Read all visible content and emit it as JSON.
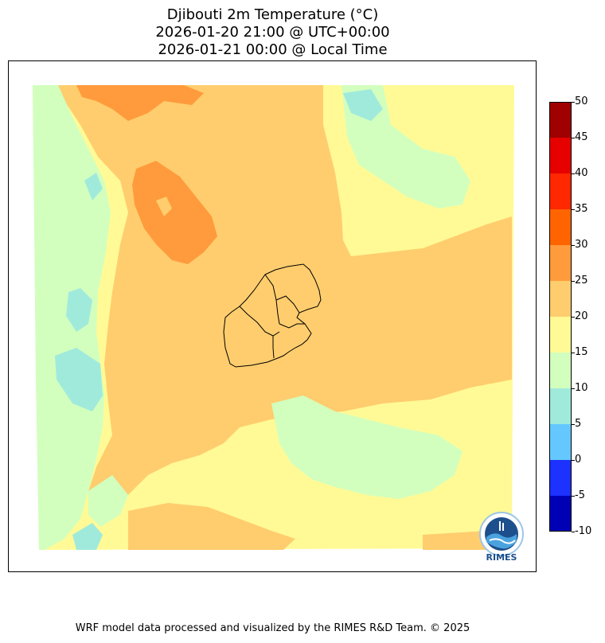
{
  "title": {
    "line1": "Djibouti 2m Temperature (°C)",
    "line2": "2026-01-20 21:00 @ UTC+00:00",
    "line3": "2026-01-21 00:00 @ Local Time"
  },
  "colorbar": {
    "levels": [
      -10,
      -5,
      0,
      5,
      10,
      15,
      20,
      25,
      30,
      35,
      40,
      45,
      50
    ],
    "tick_labels": [
      "-10",
      "-5",
      "0",
      "5",
      "10",
      "15",
      "20",
      "25",
      "30",
      "35",
      "40",
      "45",
      "50"
    ],
    "colors": [
      "#0000b4",
      "#1e32ff",
      "#64c8ff",
      "#a0eadc",
      "#d2ffbe",
      "#fffa96",
      "#ffcd6e",
      "#ff9b3c",
      "#ff6400",
      "#ff2800",
      "#e60000",
      "#a00000"
    ]
  },
  "map_colors": {
    "band_10_15": "#d2ffbe",
    "band_15_20": "#fffa96",
    "band_20_25": "#ffcd6e",
    "band_25_30": "#ff9b3c",
    "band_5_10": "#a0eadc",
    "border": "#000000"
  },
  "logo": {
    "text": "RIMES"
  },
  "footer": {
    "text": "WRF model data processed and visualized by the RIMES R&D Team. © 2025"
  }
}
